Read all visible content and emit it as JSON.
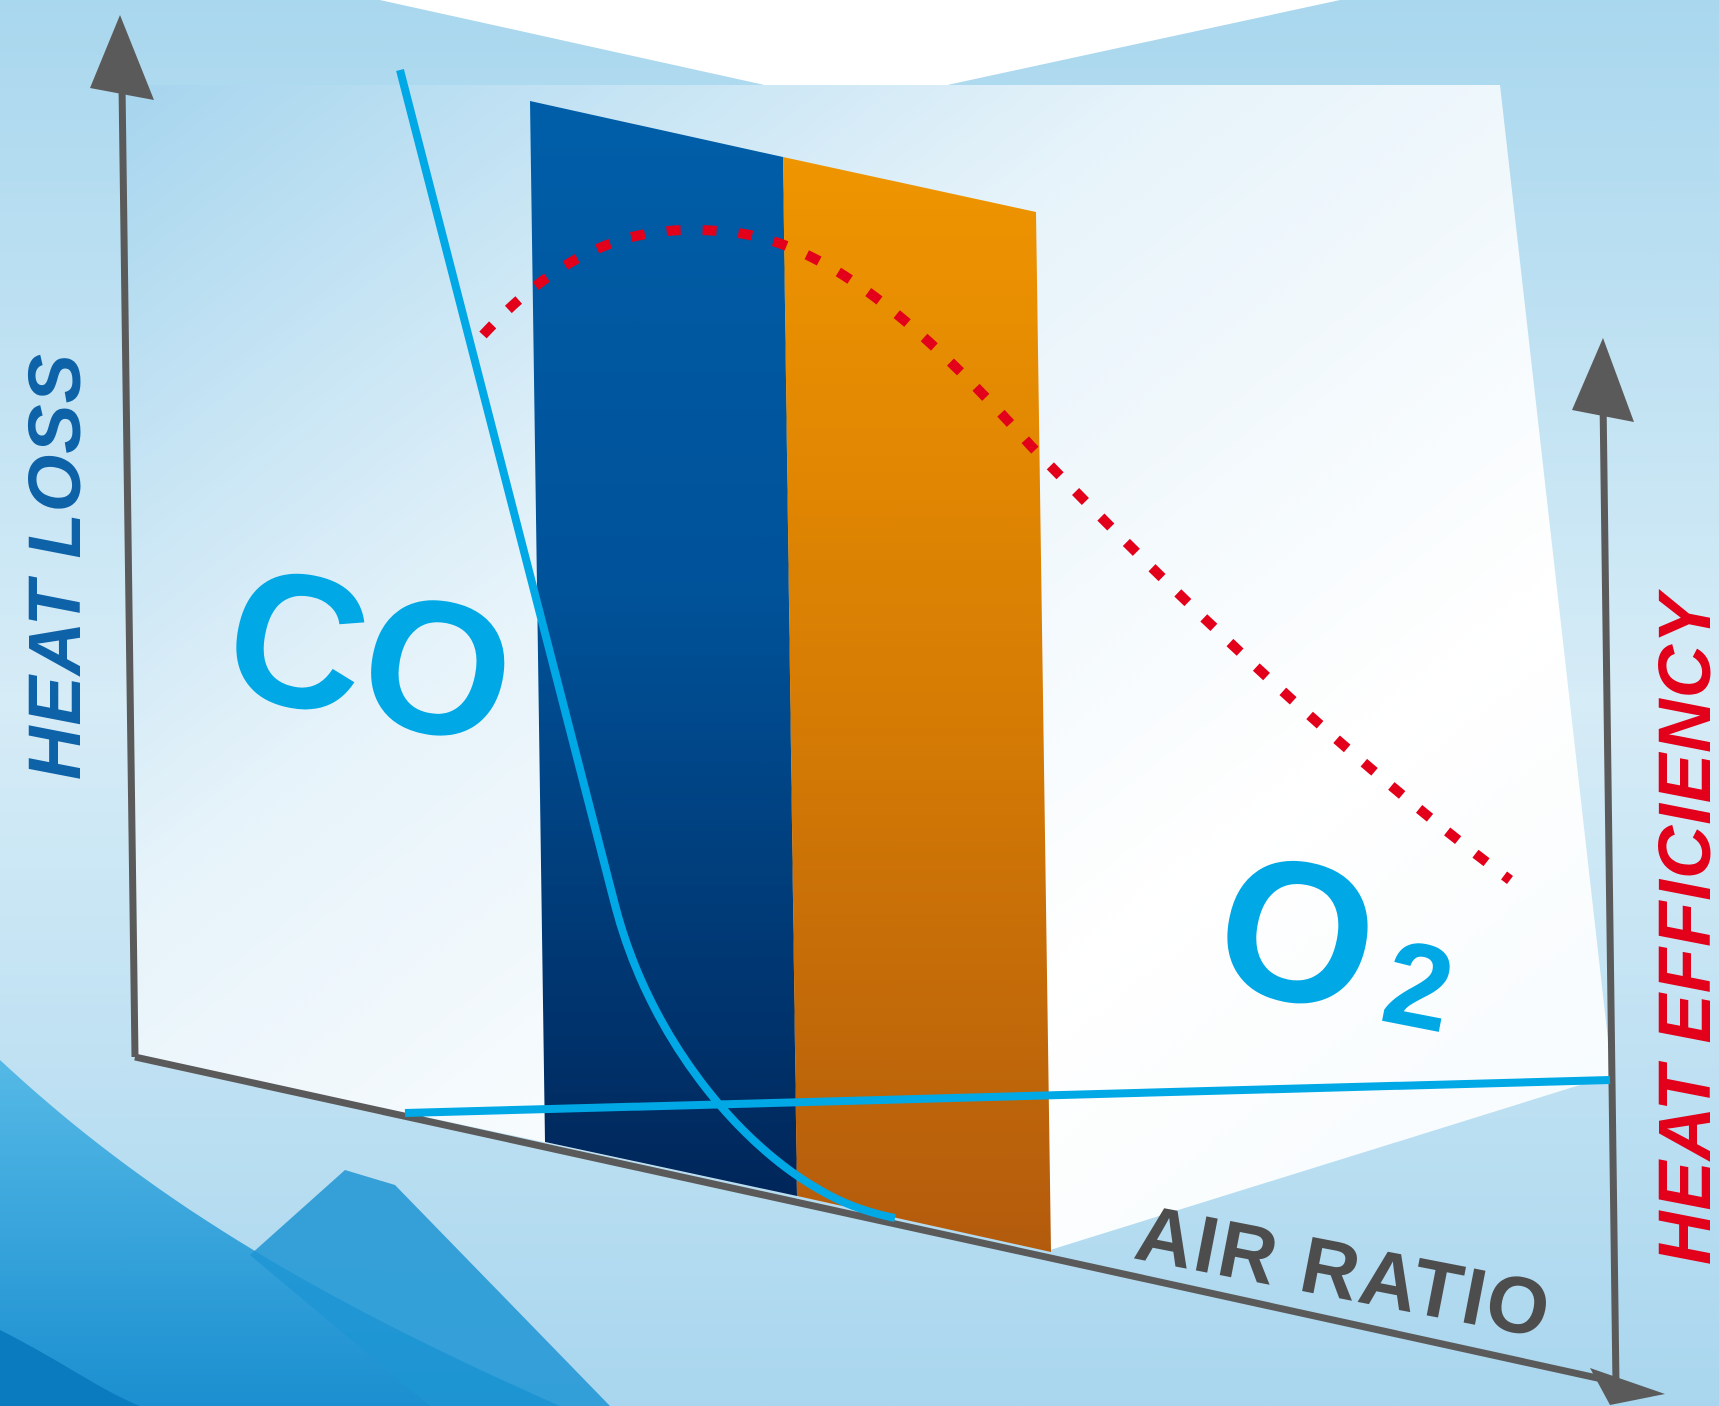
{
  "labels": {
    "left_axis": "HEAT LOSS",
    "right_axis": "HEAT EFFICIENCY",
    "bottom_axis": "AIR RATIO",
    "co": "CO",
    "o2_main": "O",
    "o2_sub": "2"
  },
  "colors": {
    "background": "#acd9ef",
    "panel": "#ffffff",
    "axis": "#5a5a5a",
    "heat_loss_text": "#0e63a8",
    "heat_efficiency_text": "#e2001a",
    "gas_text": "#00a8e6",
    "curve": "#00a8e6",
    "efficiency_curve": "#e2001a",
    "blue_band_top": "#005ea8",
    "blue_band_bottom": "#00265a",
    "orange_band_top": "#ee9400",
    "orange_band_bottom": "#b35c0c",
    "bottom_waves": "#2aa1dc"
  }
}
